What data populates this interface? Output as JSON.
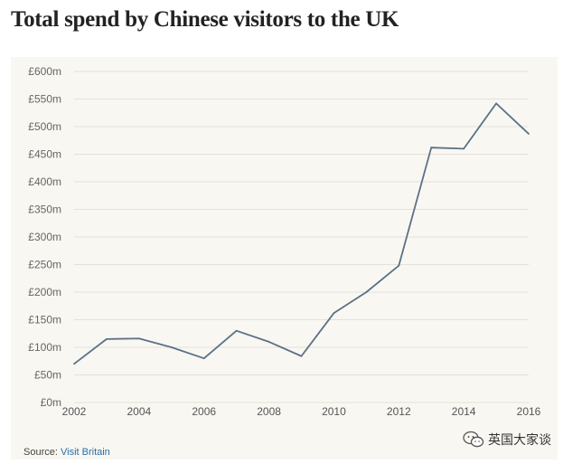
{
  "title": "Total spend by Chinese visitors to the UK",
  "source": {
    "label": "Source:",
    "link_text": "Visit Britain"
  },
  "watermark": {
    "text": "英国大家谈",
    "icon": "wechat-icon"
  },
  "colors": {
    "line": "#5b7186",
    "grid": "#e4e1da",
    "panel": "#f9f7f2"
  },
  "chart_data": {
    "type": "line",
    "title": "Total spend by Chinese visitors to the UK",
    "xlabel": "",
    "ylabel": "",
    "x": [
      2002,
      2003,
      2004,
      2005,
      2006,
      2007,
      2008,
      2009,
      2010,
      2011,
      2012,
      2013,
      2014,
      2015,
      2016
    ],
    "series": [
      {
        "values": [
          70,
          115,
          116,
          100,
          80,
          130,
          110,
          84,
          162,
          200,
          248,
          462,
          460,
          542,
          487
        ]
      }
    ],
    "xlim": [
      2002,
      2016
    ],
    "ylim": [
      0,
      600
    ],
    "x_ticks": [
      2002,
      2004,
      2006,
      2008,
      2010,
      2012,
      2014,
      2016
    ],
    "y_ticks": [
      0,
      50,
      100,
      150,
      200,
      250,
      300,
      350,
      400,
      450,
      500,
      550,
      600
    ],
    "x_tick_labels": [
      "2002",
      "2004",
      "2006",
      "2008",
      "2010",
      "2012",
      "2014",
      "2016"
    ],
    "y_tick_labels": [
      "£0m",
      "£50m",
      "£100m",
      "£150m",
      "£200m",
      "£250m",
      "£300m",
      "£350m",
      "£400m",
      "£450m",
      "£500m",
      "£550m",
      "£600m"
    ],
    "grid": true,
    "legend": "none"
  }
}
